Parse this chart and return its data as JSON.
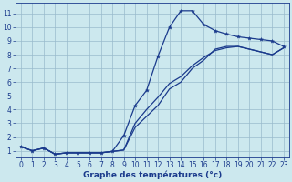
{
  "xlabel": "Graphe des températures (°c)",
  "xlim": [
    -0.5,
    23.5
  ],
  "ylim": [
    0.5,
    11.8
  ],
  "yticks": [
    1,
    2,
    3,
    4,
    5,
    6,
    7,
    8,
    9,
    10,
    11
  ],
  "xticks": [
    0,
    1,
    2,
    3,
    4,
    5,
    6,
    7,
    8,
    9,
    10,
    11,
    12,
    13,
    14,
    15,
    16,
    17,
    18,
    19,
    20,
    21,
    22,
    23
  ],
  "background_color": "#cce8ee",
  "grid_color": "#99bbcc",
  "line_color": "#1a3a8c",
  "line1_x": [
    0,
    1,
    2,
    3,
    4,
    5,
    6,
    7,
    8,
    9,
    10,
    11,
    12,
    13,
    14,
    15,
    16,
    17,
    18,
    19,
    20,
    21,
    22,
    23
  ],
  "line1_y": [
    1.3,
    1.0,
    1.2,
    0.75,
    0.85,
    0.85,
    0.85,
    0.85,
    0.95,
    2.1,
    4.3,
    5.4,
    7.9,
    10.0,
    11.2,
    11.2,
    10.2,
    9.75,
    9.5,
    9.3,
    9.2,
    9.1,
    9.0,
    8.6
  ],
  "line2_x": [
    0,
    1,
    2,
    3,
    4,
    5,
    6,
    7,
    8,
    9,
    10,
    11,
    12,
    13,
    14,
    15,
    16,
    17,
    18,
    19,
    20,
    21,
    22,
    23
  ],
  "line2_y": [
    1.3,
    1.0,
    1.2,
    0.75,
    0.85,
    0.85,
    0.85,
    0.85,
    0.95,
    1.05,
    3.0,
    4.0,
    4.9,
    5.9,
    6.4,
    7.2,
    7.8,
    8.3,
    8.5,
    8.6,
    8.4,
    8.2,
    8.0,
    8.5
  ],
  "line3_x": [
    0,
    1,
    2,
    3,
    4,
    5,
    6,
    7,
    8,
    9,
    10,
    11,
    12,
    13,
    14,
    15,
    16,
    17,
    18,
    19,
    20,
    21,
    22,
    23
  ],
  "line3_y": [
    1.3,
    1.0,
    1.2,
    0.75,
    0.85,
    0.85,
    0.85,
    0.85,
    0.95,
    1.05,
    2.7,
    3.5,
    4.3,
    5.5,
    6.0,
    7.0,
    7.6,
    8.4,
    8.6,
    8.6,
    8.4,
    8.2,
    8.0,
    8.5
  ],
  "tick_fontsize": 5.5,
  "xlabel_fontsize": 6.5,
  "linewidth": 0.9,
  "markersize": 3.0
}
